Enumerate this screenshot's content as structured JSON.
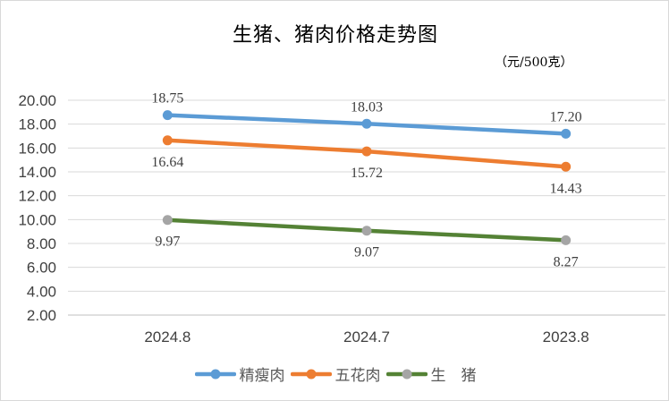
{
  "chart_data": {
    "type": "line",
    "title": "生猪、猪肉价格走势图",
    "unit_label": "（元/500克）",
    "categories": [
      "2024.8",
      "2024.7",
      "2023.8"
    ],
    "ylim": [
      2,
      20
    ],
    "yticks": [
      "2.00",
      "4.00",
      "6.00",
      "8.00",
      "10.00",
      "12.00",
      "14.00",
      "16.00",
      "18.00",
      "20.00"
    ],
    "grid": true,
    "legend_position": "bottom",
    "series": [
      {
        "name": "精瘦肉",
        "values": [
          18.75,
          18.03,
          17.2
        ],
        "labels": [
          "18.75",
          "18.03",
          "17.20"
        ],
        "label_pos": "above",
        "line_color": "#5b9bd5",
        "marker_color": "#5b9bd5"
      },
      {
        "name": "五花肉",
        "values": [
          16.64,
          15.72,
          14.43
        ],
        "labels": [
          "16.64",
          "15.72",
          "14.43"
        ],
        "label_pos": "below",
        "line_color": "#ed7d31",
        "marker_color": "#ed7d31"
      },
      {
        "name": "生　猪",
        "values": [
          9.97,
          9.07,
          8.27
        ],
        "labels": [
          "9.97",
          "9.07",
          "8.27"
        ],
        "label_pos": "below",
        "line_color": "#548235",
        "marker_color": "#a5a5a5"
      }
    ]
  }
}
